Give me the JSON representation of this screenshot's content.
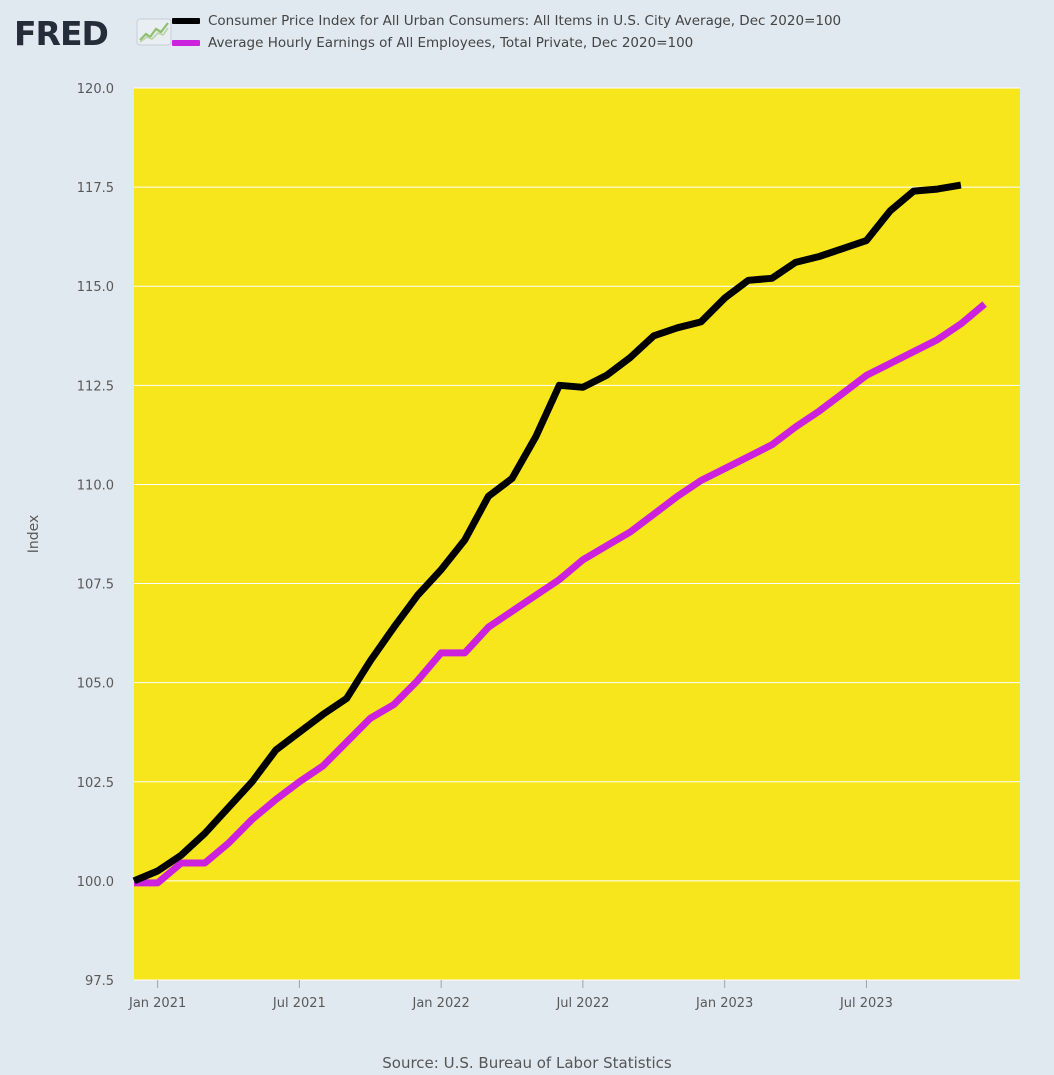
{
  "header": {
    "logo_text": "FRED",
    "logo_icon": "chart-line-icon"
  },
  "legend": {
    "items": [
      {
        "label": "Consumer Price Index for All Urban Consumers: All Items in U.S. City Average, Dec 2020=100",
        "color": "#000000"
      },
      {
        "label": "Average Hourly Earnings of All Employees, Total Private, Dec 2020=100",
        "color": "#cc22dd"
      }
    ]
  },
  "source": "Source: U.S. Bureau of Labor Statistics",
  "colors": {
    "page_background": "#e1e9f0",
    "plot_background": "#f7e61c",
    "grid": "#ffffff"
  },
  "chart_data": {
    "type": "line",
    "title": "",
    "xlabel": "",
    "ylabel": "Index",
    "ylim": [
      97.5,
      120.0
    ],
    "yticks": [
      97.5,
      100.0,
      102.5,
      105.0,
      107.5,
      110.0,
      112.5,
      115.0,
      117.5,
      120.0
    ],
    "ytick_labels": [
      "97.5",
      "100.0",
      "102.5",
      "105.0",
      "107.5",
      "110.0",
      "112.5",
      "115.0",
      "117.5",
      "120.0"
    ],
    "x_start": "Dec 2020",
    "x_index_range": [
      0,
      37.5
    ],
    "xticks": [
      {
        "index": 1,
        "label": "Jan 2021"
      },
      {
        "index": 7,
        "label": "Jul 2021"
      },
      {
        "index": 13,
        "label": "Jan 2022"
      },
      {
        "index": 19,
        "label": "Jul 2022"
      },
      {
        "index": 25,
        "label": "Jan 2023"
      },
      {
        "index": 31,
        "label": "Jul 2023"
      }
    ],
    "grid": true,
    "series": [
      {
        "name": "Consumer Price Index for All Urban Consumers: All Items in U.S. City Average, Dec 2020=100",
        "color": "#000000",
        "values": [
          100.0,
          100.25,
          100.65,
          101.2,
          101.85,
          102.5,
          103.3,
          103.75,
          104.2,
          104.6,
          105.55,
          106.4,
          107.2,
          107.85,
          108.6,
          109.7,
          110.15,
          111.2,
          112.5,
          112.45,
          112.75,
          113.2,
          113.75,
          113.95,
          114.1,
          114.7,
          115.15,
          115.2,
          115.6,
          115.75,
          115.95,
          116.15,
          116.9,
          117.4,
          117.45,
          117.55
        ]
      },
      {
        "name": "Average Hourly Earnings of All Employees, Total Private, Dec 2020=100",
        "color": "#cc22dd",
        "values": [
          99.95,
          99.95,
          100.45,
          100.45,
          100.95,
          101.55,
          102.05,
          102.5,
          102.9,
          103.5,
          104.1,
          104.45,
          105.05,
          105.75,
          105.75,
          106.4,
          106.8,
          107.2,
          107.6,
          108.1,
          108.45,
          108.8,
          109.25,
          109.7,
          110.1,
          110.4,
          110.7,
          111.0,
          111.45,
          111.85,
          112.3,
          112.75,
          113.05,
          113.35,
          113.65,
          114.05,
          114.55
        ]
      }
    ]
  }
}
